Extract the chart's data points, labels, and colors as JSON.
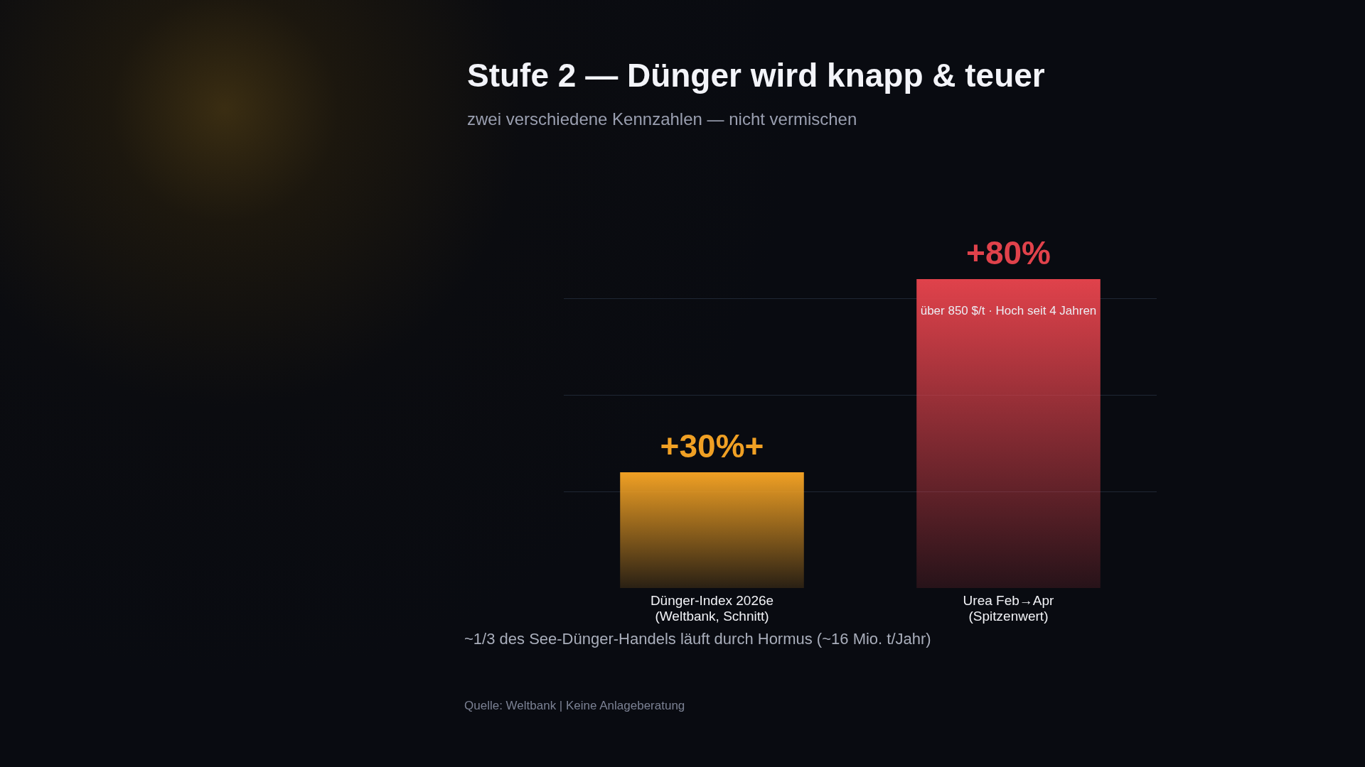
{
  "chart_data": {
    "type": "bar",
    "title": "Stufe 2 — Dünger wird knapp & teuer",
    "subtitle": "zwei verschiedene Kennzahlen — nicht vermischen",
    "categories": [
      "Dünger-Index 2026e\n(Weltbank, Schnitt)",
      "Urea Feb→Apr\n(Spitzenwert)"
    ],
    "values": [
      30,
      80
    ],
    "colors": [
      "#f0a024",
      "#e0424b"
    ],
    "value_labels": [
      "+30%+",
      "+80%"
    ],
    "yticks": [
      {
        "value": 25,
        "label": null
      },
      {
        "value": 50,
        "label": null
      },
      {
        "value": 75,
        "label": null
      }
    ],
    "grid": "y",
    "tick_labels": "x",
    "annotations": [
      "über 850 $/t · Hoch seit 4 Jahren",
      "~1/3 des See-Dünger-Handels läuft durch Hormus (~16 Mio. t/Jahr)",
      "Quelle: Weltbank | Keine Anlageberatung"
    ]
  }
}
